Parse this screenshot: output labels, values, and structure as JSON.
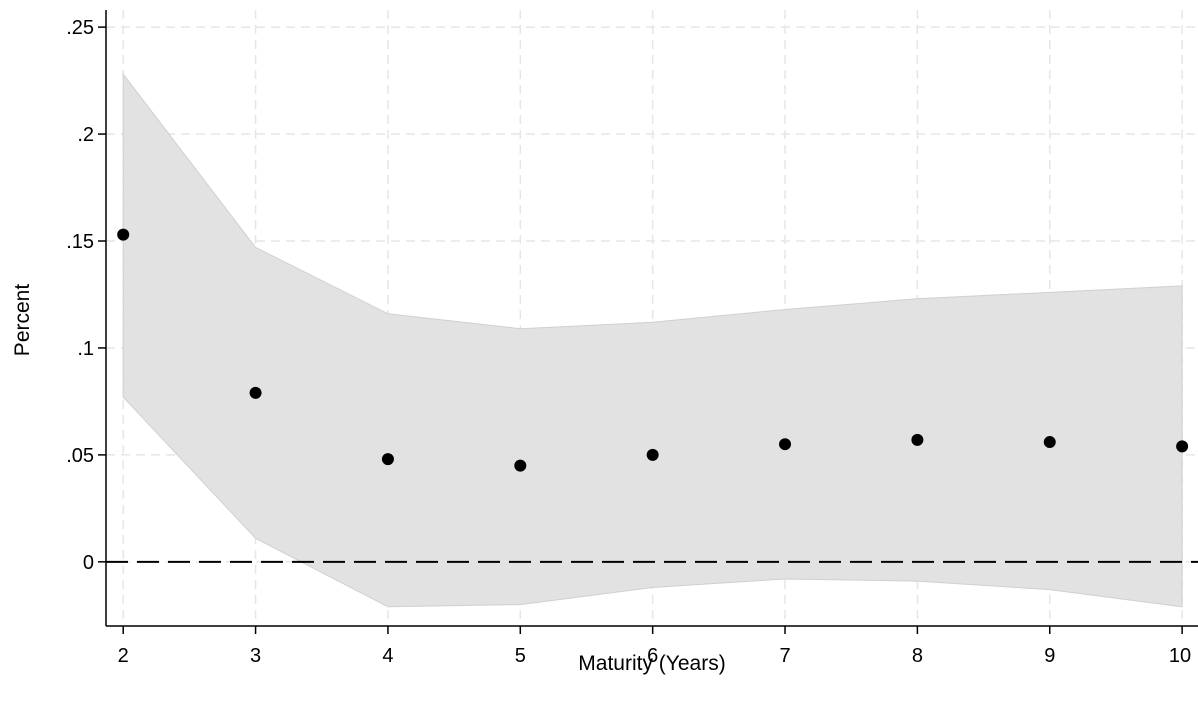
{
  "chart_data": {
    "type": "scatter",
    "title": "",
    "xlabel": "Maturity (Years)",
    "ylabel": "Percent",
    "x": [
      2,
      3,
      4,
      5,
      6,
      7,
      8,
      9,
      10
    ],
    "x_tick_labels": [
      "2",
      "3",
      "4",
      "5",
      "6",
      "7",
      "8",
      "9",
      "10"
    ],
    "y_ticks": [
      0,
      0.05,
      0.1,
      0.15,
      0.2,
      0.25
    ],
    "y_tick_labels": [
      "0",
      ".05",
      ".1",
      ".15",
      ".2",
      ".25"
    ],
    "xlim": [
      1.87,
      10.12
    ],
    "ylim": [
      -0.03,
      0.258
    ],
    "grid": true,
    "reference_line_y": 0,
    "series": [
      {
        "values": [
          0.153,
          0.079,
          0.048,
          0.045,
          0.05,
          0.055,
          0.057,
          0.056,
          0.054
        ]
      }
    ],
    "confidence_band": {
      "upper": [
        0.228,
        0.147,
        0.116,
        0.109,
        0.112,
        0.118,
        0.123,
        0.126,
        0.129
      ],
      "lower": [
        0.077,
        0.011,
        -0.021,
        -0.02,
        -0.012,
        -0.008,
        -0.009,
        -0.013,
        -0.021
      ]
    },
    "colors": {
      "band": "#e2e2e2",
      "band_edge": "#d0d0d0",
      "point": "#000000",
      "grid": "#e6e6e6",
      "axis": "#000000"
    }
  }
}
